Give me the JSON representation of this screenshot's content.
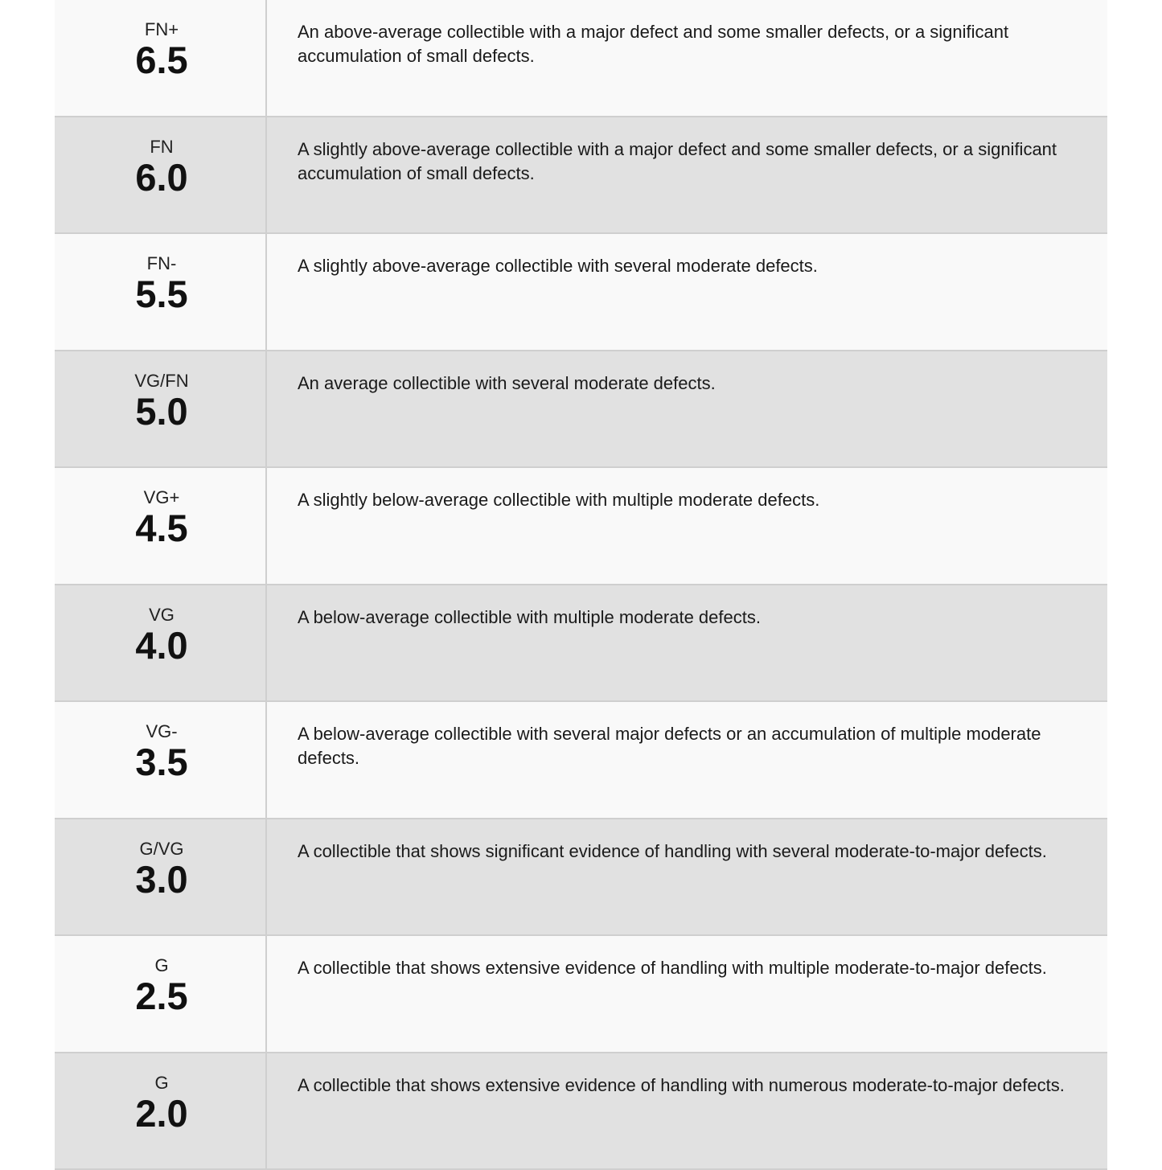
{
  "grades": [
    {
      "abbr": "FN+",
      "grade": "6.5",
      "description": "An above-average collectible with a major defect and some smaller defects, or a significant accumulation of small defects."
    },
    {
      "abbr": "FN",
      "grade": "6.0",
      "description": "A slightly above-average collectible with a major defect and some smaller defects, or a significant accumulation of small defects."
    },
    {
      "abbr": "FN-",
      "grade": "5.5",
      "description": "A slightly above-average collectible with several moderate defects."
    },
    {
      "abbr": "VG/FN",
      "grade": "5.0",
      "description": "An average collectible with several moderate defects."
    },
    {
      "abbr": "VG+",
      "grade": "4.5",
      "description": "A slightly below-average collectible with multiple moderate defects."
    },
    {
      "abbr": "VG",
      "grade": "4.0",
      "description": "A below-average collectible with multiple moderate defects."
    },
    {
      "abbr": "VG-",
      "grade": "3.5",
      "description": "A below-average collectible with several major defects or an accumulation of multiple moderate defects."
    },
    {
      "abbr": "G/VG",
      "grade": "3.0",
      "description": "A collectible that shows significant evidence of handling with several moderate-to-major defects."
    },
    {
      "abbr": "G",
      "grade": "2.5",
      "description": "A collectible that shows extensive evidence of handling with multiple moderate-to-major defects."
    },
    {
      "abbr": "G",
      "grade": "2.0",
      "description": "A collectible that shows extensive evidence of handling with numerous moderate-to-major defects."
    }
  ]
}
